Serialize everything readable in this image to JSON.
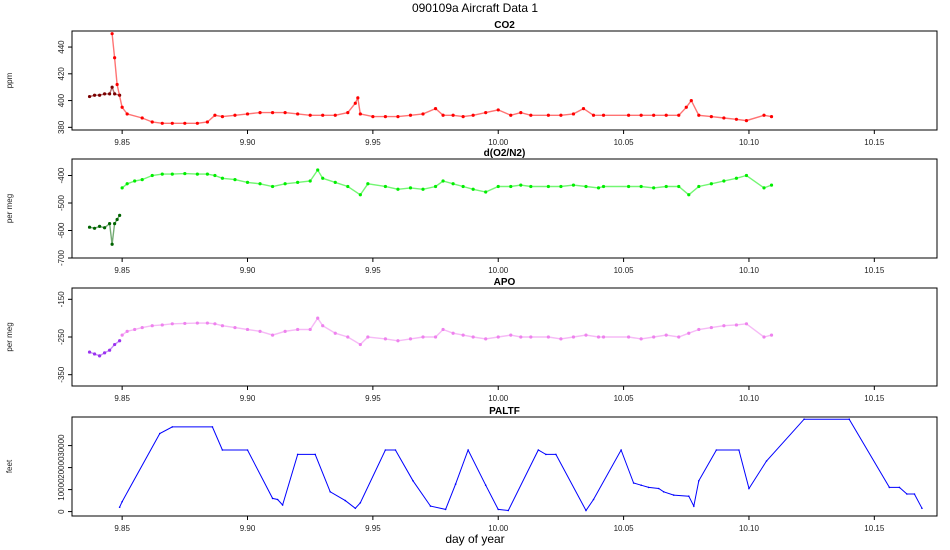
{
  "figure": {
    "title": "090109a   Aircraft Data 1",
    "xlabel": "day of year"
  },
  "chart_data": [
    {
      "type": "scatter",
      "title": "CO2",
      "xlabel": "",
      "ylabel": "ppm",
      "xlim": [
        9.83,
        10.175
      ],
      "ylim": [
        378,
        452
      ],
      "xticks": [
        9.85,
        9.9,
        9.95,
        10.0,
        10.05,
        10.1,
        10.15
      ],
      "xtick_labels": [
        "9.85",
        "9.90",
        "9.95",
        "10.00",
        "10.05",
        "10.10",
        "10.15"
      ],
      "yticks": [
        380,
        400,
        420,
        440
      ],
      "ytick_labels": [
        "380",
        "400",
        "420",
        "440"
      ],
      "series": [
        {
          "color": "#7a0000",
          "x": [
            9.837,
            9.839,
            9.841,
            9.843,
            9.845,
            9.846,
            9.847,
            9.849
          ],
          "y": [
            403,
            404,
            404,
            405,
            405,
            410,
            405,
            404
          ]
        },
        {
          "color": "#ff0000",
          "x": [
            9.846,
            9.847,
            9.848,
            9.85,
            9.852,
            9.858,
            9.862,
            9.866,
            9.87,
            9.875,
            9.88,
            9.884,
            9.887,
            9.89,
            9.895,
            9.9,
            9.905,
            9.91,
            9.915,
            9.92,
            9.925,
            9.93,
            9.935,
            9.94,
            9.943,
            9.944,
            9.945,
            9.95,
            9.955,
            9.96,
            9.965,
            9.97,
            9.975,
            9.978,
            9.982,
            9.986,
            9.99,
            9.995,
            10.0,
            10.005,
            10.009,
            10.013,
            10.02,
            10.025,
            10.03,
            10.034,
            10.038,
            10.042,
            10.052,
            10.057,
            10.062,
            10.067,
            10.072,
            10.075,
            10.077,
            10.08,
            10.085,
            10.09,
            10.095,
            10.099,
            10.106,
            10.109
          ],
          "y": [
            450,
            432,
            412,
            395,
            390,
            387,
            384,
            383,
            383,
            383,
            383,
            384,
            389,
            388,
            389,
            390,
            391,
            391,
            391,
            390,
            389,
            389,
            389,
            391,
            398,
            402,
            390,
            388,
            388,
            388,
            389,
            390,
            394,
            389,
            389,
            388,
            389,
            391,
            393,
            389,
            391,
            389,
            389,
            389,
            390,
            394,
            389,
            389,
            389,
            389,
            389,
            389,
            389,
            395,
            400,
            389,
            388,
            387,
            386,
            385,
            389,
            388
          ]
        }
      ]
    },
    {
      "type": "scatter",
      "title": "d(O2/N2)",
      "xlabel": "",
      "ylabel": "per meg",
      "xlim": [
        9.83,
        10.175
      ],
      "ylim": [
        -700,
        -340
      ],
      "xticks": [
        9.85,
        9.9,
        9.95,
        10.0,
        10.05,
        10.1,
        10.15
      ],
      "xtick_labels": [
        "9.85",
        "9.90",
        "9.95",
        "10.00",
        "10.05",
        "10.10",
        "10.15"
      ],
      "yticks": [
        -700,
        -600,
        -500,
        -400
      ],
      "ytick_labels": [
        "-700",
        "-600",
        "-500",
        "-400"
      ],
      "series": [
        {
          "color": "#006400",
          "x": [
            9.837,
            9.839,
            9.841,
            9.843,
            9.845,
            9.846,
            9.847,
            9.848,
            9.849
          ],
          "y": [
            -588,
            -592,
            -585,
            -590,
            -575,
            -650,
            -575,
            -560,
            -545
          ]
        },
        {
          "color": "#00ee00",
          "x": [
            9.85,
            9.852,
            9.855,
            9.858,
            9.862,
            9.866,
            9.87,
            9.875,
            9.88,
            9.884,
            9.887,
            9.89,
            9.895,
            9.9,
            9.905,
            9.91,
            9.915,
            9.92,
            9.925,
            9.928,
            9.93,
            9.935,
            9.94,
            9.945,
            9.948,
            9.955,
            9.96,
            9.965,
            9.97,
            9.975,
            9.978,
            9.982,
            9.986,
            9.99,
            9.995,
            10.0,
            10.005,
            10.009,
            10.013,
            10.02,
            10.025,
            10.03,
            10.035,
            10.04,
            10.042,
            10.052,
            10.057,
            10.062,
            10.067,
            10.072,
            10.076,
            10.08,
            10.085,
            10.09,
            10.095,
            10.099,
            10.106,
            10.109
          ],
          "y": [
            -445,
            -430,
            -420,
            -415,
            -400,
            -395,
            -395,
            -393,
            -395,
            -395,
            -400,
            -410,
            -415,
            -425,
            -430,
            -440,
            -430,
            -425,
            -420,
            -380,
            -410,
            -425,
            -440,
            -470,
            -430,
            -440,
            -450,
            -445,
            -450,
            -440,
            -420,
            -430,
            -440,
            -450,
            -460,
            -440,
            -440,
            -435,
            -440,
            -440,
            -440,
            -435,
            -440,
            -445,
            -440,
            -440,
            -440,
            -445,
            -440,
            -440,
            -470,
            -440,
            -430,
            -420,
            -410,
            -400,
            -445,
            -435
          ]
        }
      ]
    },
    {
      "type": "scatter",
      "title": "APO",
      "xlabel": "",
      "ylabel": "per meg",
      "xlim": [
        9.83,
        10.175
      ],
      "ylim": [
        -380,
        -120
      ],
      "xticks": [
        9.85,
        9.9,
        9.95,
        10.0,
        10.05,
        10.1,
        10.15
      ],
      "xtick_labels": [
        "9.85",
        "9.90",
        "9.95",
        "10.00",
        "10.05",
        "10.10",
        "10.15"
      ],
      "yticks": [
        -350,
        -250,
        -150
      ],
      "ytick_labels": [
        "-350",
        "-250",
        "-150"
      ],
      "series": [
        {
          "color": "#9a32f0",
          "x": [
            9.837,
            9.839,
            9.841,
            9.843,
            9.845,
            9.847,
            9.849
          ],
          "y": [
            -290,
            -295,
            -300,
            -292,
            -285,
            -270,
            -260
          ]
        },
        {
          "color": "#ee82ee",
          "x": [
            9.85,
            9.852,
            9.855,
            9.858,
            9.862,
            9.866,
            9.87,
            9.875,
            9.88,
            9.884,
            9.887,
            9.89,
            9.895,
            9.9,
            9.905,
            9.91,
            9.915,
            9.92,
            9.925,
            9.928,
            9.93,
            9.935,
            9.94,
            9.945,
            9.948,
            9.955,
            9.96,
            9.965,
            9.97,
            9.975,
            9.978,
            9.982,
            9.986,
            9.99,
            9.995,
            10.0,
            10.005,
            10.009,
            10.013,
            10.02,
            10.025,
            10.03,
            10.035,
            10.04,
            10.042,
            10.052,
            10.057,
            10.062,
            10.067,
            10.072,
            10.076,
            10.08,
            10.085,
            10.09,
            10.095,
            10.099,
            10.106,
            10.109
          ],
          "y": [
            -245,
            -235,
            -230,
            -225,
            -220,
            -218,
            -215,
            -214,
            -213,
            -213,
            -215,
            -220,
            -225,
            -230,
            -235,
            -245,
            -235,
            -230,
            -230,
            -200,
            -220,
            -240,
            -250,
            -270,
            -250,
            -255,
            -260,
            -255,
            -250,
            -250,
            -230,
            -240,
            -245,
            -250,
            -255,
            -250,
            -245,
            -250,
            -250,
            -250,
            -255,
            -250,
            -245,
            -250,
            -250,
            -250,
            -255,
            -250,
            -245,
            -250,
            -240,
            -230,
            -225,
            -220,
            -218,
            -215,
            -250,
            -245
          ]
        }
      ]
    },
    {
      "type": "line",
      "title": "PALTF",
      "xlabel": "day of year",
      "ylabel": "feet",
      "xlim": [
        9.83,
        10.175
      ],
      "ylim": [
        -2000,
        43000
      ],
      "xticks": [
        9.85,
        9.9,
        9.95,
        10.0,
        10.05,
        10.1,
        10.15
      ],
      "xtick_labels": [
        "9.85",
        "9.90",
        "9.95",
        "10.00",
        "10.05",
        "10.10",
        "10.15"
      ],
      "yticks": [
        0,
        10000,
        20000,
        30000
      ],
      "ytick_labels": [
        "0",
        "10000",
        "20000",
        "30000"
      ],
      "series": [
        {
          "color": "#0000ff",
          "x": [
            9.849,
            9.85,
            9.865,
            9.87,
            9.886,
            9.89,
            9.9,
            9.91,
            9.912,
            9.914,
            9.92,
            9.927,
            9.933,
            9.939,
            9.943,
            9.945,
            9.955,
            9.959,
            9.966,
            9.973,
            9.979,
            9.983,
            9.988,
            9.995,
            10.0,
            10.004,
            10.016,
            10.019,
            10.023,
            10.035,
            10.038,
            10.049,
            10.054,
            10.057,
            10.06,
            10.064,
            10.066,
            10.07,
            10.076,
            10.078,
            10.08,
            10.087,
            10.096,
            10.1,
            10.107,
            10.122,
            10.14,
            10.156,
            10.16,
            10.163,
            10.166,
            10.169
          ],
          "y": [
            2000,
            4500,
            35500,
            38500,
            38500,
            28000,
            28000,
            6000,
            5500,
            3000,
            26000,
            26000,
            9000,
            5000,
            1500,
            4000,
            28000,
            28000,
            14000,
            2500,
            1000,
            12500,
            28000,
            12000,
            1000,
            500,
            28000,
            26000,
            26000,
            500,
            5500,
            28000,
            13000,
            12000,
            11000,
            10500,
            9000,
            7500,
            7000,
            2500,
            14000,
            28000,
            28000,
            10500,
            23000,
            42000,
            42000,
            11000,
            11000,
            8000,
            8000,
            1500
          ]
        }
      ]
    }
  ]
}
